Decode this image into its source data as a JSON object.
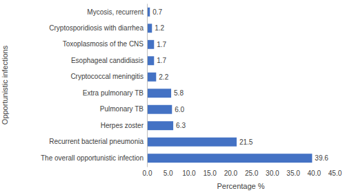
{
  "chart_data": {
    "type": "bar",
    "orientation": "horizontal",
    "x_label": "Percentage %",
    "y_label": "Opportunistic infections",
    "categories": [
      "Mycosis, recurrent",
      "Cryptosporidiosis with diarrhea",
      "Toxoplasmosis of the CNS",
      "Esophageal candidiasis",
      "Cryptococcal meningitis",
      "Extra pulmonary TB",
      "Pulmonary TB",
      "Herpes zoster",
      "Recurrent bacterial pneumonia",
      "The overall opportunistic infection"
    ],
    "values": [
      0.7,
      1.2,
      1.7,
      1.7,
      2.2,
      5.8,
      6.0,
      6.3,
      21.5,
      39.6
    ],
    "value_labels": [
      "0.7",
      "1.2",
      "1.7",
      "1.7",
      "2.2",
      "5.8",
      "6.0",
      "6.3",
      "21.5",
      "39.6"
    ],
    "color": "#4472c4",
    "xlim": [
      0,
      45
    ],
    "xticks": [
      {
        "value": 0,
        "label": "0.0"
      },
      {
        "value": 5,
        "label": "5.0"
      },
      {
        "value": 10,
        "label": "10.0"
      },
      {
        "value": 15,
        "label": "15.0"
      },
      {
        "value": 20,
        "label": "20.0"
      },
      {
        "value": 25,
        "label": "25.0"
      },
      {
        "value": 30,
        "label": "30.0"
      },
      {
        "value": 35,
        "label": "35.0"
      },
      {
        "value": 40,
        "label": "40.0"
      },
      {
        "value": 45,
        "label": "45.0"
      }
    ],
    "grid": false,
    "data_labels": true
  }
}
